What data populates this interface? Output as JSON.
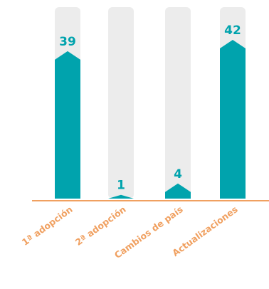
{
  "chart_data": {
    "type": "bar",
    "categories": [
      "1ª adopción",
      "2ª adopción",
      "Cambios de país",
      "Actualizaciones"
    ],
    "values": [
      39,
      1,
      4,
      42
    ],
    "data_labels": [
      "39",
      "1",
      "4",
      "42"
    ],
    "ylim": [
      0,
      42
    ],
    "title": "",
    "xlabel": "",
    "ylabel": "",
    "grid": false,
    "legend": "none",
    "colors": {
      "bar": "#00a3ad",
      "track": "#ececec",
      "axis": "#f0a060",
      "value_label": "#00a3ad",
      "category_label": "#f0a060"
    }
  }
}
